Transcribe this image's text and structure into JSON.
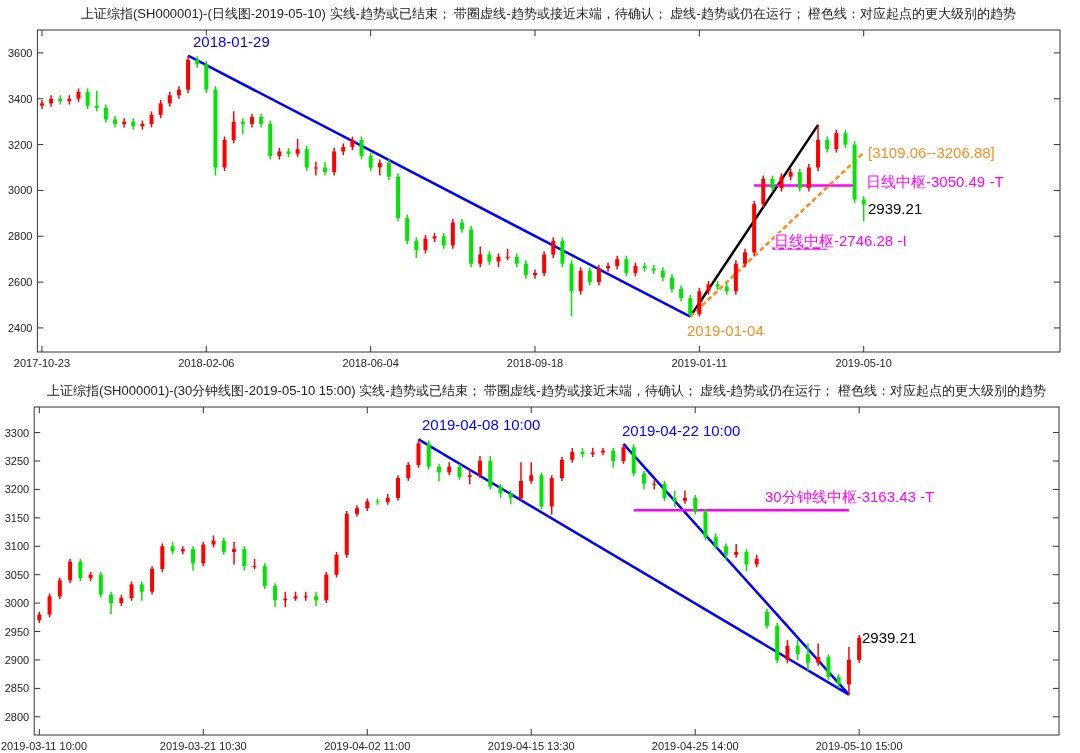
{
  "chart_data": [
    {
      "type": "candlestick",
      "title": "上证综指(SH000001)-(日线图-2019-05-10)  实线-趋势或已结束；  带圈虚线-趋势或接近末端，待确认；  虚线-趋势或仍在运行；  橙色线：对应起点的更大级别的趋势",
      "ylim": [
        2295,
        3700
      ],
      "yticks": [
        2400,
        2600,
        2800,
        3000,
        3200,
        3400,
        3600
      ],
      "categories": [
        "2017-10-23",
        null,
        null,
        null,
        null,
        null,
        null,
        null,
        null,
        null,
        null,
        null,
        null,
        null,
        null,
        null,
        null,
        null,
        "2018-02-06",
        null,
        null,
        null,
        null,
        null,
        null,
        null,
        null,
        null,
        null,
        null,
        null,
        null,
        null,
        null,
        null,
        null,
        "2018-06-04",
        null,
        null,
        null,
        null,
        null,
        null,
        null,
        null,
        null,
        null,
        null,
        null,
        null,
        null,
        null,
        null,
        null,
        "2018-09-18",
        null,
        null,
        null,
        null,
        null,
        null,
        null,
        null,
        null,
        null,
        null,
        null,
        null,
        null,
        null,
        null,
        null,
        "2019-01-11",
        null,
        null,
        null,
        null,
        null,
        null,
        null,
        null,
        null,
        null,
        null,
        null,
        null,
        null,
        null,
        null,
        null,
        "2019-05-10",
        null,
        null,
        null,
        null,
        null,
        null,
        null,
        null,
        null,
        null,
        null,
        null,
        null,
        null,
        null,
        null,
        null,
        null,
        null,
        null,
        null
      ],
      "ohlc": [
        [
          3370,
          3395,
          3355,
          3380
        ],
        [
          3380,
          3415,
          3365,
          3400
        ],
        [
          3400,
          3415,
          3375,
          3390
        ],
        [
          3390,
          3415,
          3375,
          3400
        ],
        [
          3400,
          3445,
          3385,
          3430
        ],
        [
          3430,
          3445,
          3355,
          3370
        ],
        [
          3370,
          3435,
          3345,
          3360
        ],
        [
          3360,
          3375,
          3295,
          3310
        ],
        [
          3310,
          3325,
          3275,
          3290
        ],
        [
          3290,
          3315,
          3275,
          3300
        ],
        [
          3300,
          3315,
          3265,
          3280
        ],
        [
          3280,
          3305,
          3265,
          3290
        ],
        [
          3290,
          3345,
          3275,
          3330
        ],
        [
          3330,
          3395,
          3315,
          3380
        ],
        [
          3380,
          3430,
          3365,
          3415
        ],
        [
          3415,
          3455,
          3400,
          3440
        ],
        [
          3440,
          3588,
          3425,
          3570
        ],
        [
          3570,
          3585,
          3535,
          3550
        ],
        [
          3550,
          3565,
          3425,
          3440
        ],
        [
          3440,
          3455,
          3065,
          3100
        ],
        [
          3100,
          3235,
          3085,
          3220
        ],
        [
          3220,
          3345,
          3205,
          3300
        ],
        [
          3300,
          3315,
          3245,
          3290
        ],
        [
          3290,
          3335,
          3275,
          3320
        ],
        [
          3320,
          3335,
          3275,
          3290
        ],
        [
          3290,
          3305,
          3135,
          3150
        ],
        [
          3150,
          3185,
          3135,
          3170
        ],
        [
          3170,
          3185,
          3145,
          3160
        ],
        [
          3160,
          3225,
          3145,
          3180
        ],
        [
          3180,
          3195,
          3085,
          3100
        ],
        [
          3100,
          3125,
          3065,
          3100
        ],
        [
          3100,
          3125,
          3065,
          3080
        ],
        [
          3080,
          3185,
          3065,
          3170
        ],
        [
          3170,
          3205,
          3155,
          3190
        ],
        [
          3190,
          3235,
          3175,
          3220
        ],
        [
          3220,
          3235,
          3135,
          3150
        ],
        [
          3150,
          3165,
          3085,
          3100
        ],
        [
          3100,
          3135,
          3065,
          3120
        ],
        [
          3120,
          3135,
          3045,
          3060
        ],
        [
          3060,
          3075,
          2865,
          2880
        ],
        [
          2880,
          2895,
          2765,
          2780
        ],
        [
          2780,
          2795,
          2705,
          2740
        ],
        [
          2740,
          2805,
          2725,
          2790
        ],
        [
          2790,
          2815,
          2775,
          2800
        ],
        [
          2800,
          2815,
          2745,
          2760
        ],
        [
          2760,
          2875,
          2745,
          2860
        ],
        [
          2860,
          2875,
          2815,
          2830
        ],
        [
          2830,
          2845,
          2665,
          2680
        ],
        [
          2680,
          2755,
          2665,
          2720
        ],
        [
          2720,
          2735,
          2675,
          2690
        ],
        [
          2690,
          2725,
          2665,
          2710
        ],
        [
          2710,
          2745,
          2695,
          2710
        ],
        [
          2710,
          2725,
          2665,
          2680
        ],
        [
          2680,
          2695,
          2615,
          2630
        ],
        [
          2630,
          2655,
          2615,
          2640
        ],
        [
          2640,
          2735,
          2625,
          2720
        ],
        [
          2720,
          2795,
          2705,
          2780
        ],
        [
          2780,
          2795,
          2665,
          2680
        ],
        [
          2680,
          2695,
          2450,
          2560
        ],
        [
          2560,
          2665,
          2545,
          2650
        ],
        [
          2650,
          2665,
          2585,
          2600
        ],
        [
          2600,
          2675,
          2585,
          2660
        ],
        [
          2660,
          2685,
          2645,
          2670
        ],
        [
          2670,
          2715,
          2655,
          2700
        ],
        [
          2700,
          2715,
          2625,
          2640
        ],
        [
          2640,
          2685,
          2625,
          2670
        ],
        [
          2670,
          2685,
          2645,
          2660
        ],
        [
          2660,
          2675,
          2635,
          2650
        ],
        [
          2650,
          2665,
          2605,
          2620
        ],
        [
          2620,
          2635,
          2555,
          2570
        ],
        [
          2570,
          2585,
          2515,
          2530
        ],
        [
          2530,
          2545,
          2449,
          2460
        ],
        [
          2460,
          2575,
          2450,
          2560
        ],
        [
          2560,
          2605,
          2545,
          2590
        ],
        [
          2590,
          2605,
          2565,
          2580
        ],
        [
          2580,
          2595,
          2545,
          2560
        ],
        [
          2560,
          2695,
          2545,
          2680
        ],
        [
          2680,
          2745,
          2665,
          2730
        ],
        [
          2730,
          2955,
          2715,
          2940
        ],
        [
          2940,
          3065,
          2925,
          3050
        ],
        [
          3050,
          3065,
          2995,
          3010
        ],
        [
          3010,
          3075,
          2995,
          3060
        ],
        [
          3060,
          3095,
          3045,
          3080
        ],
        [
          3080,
          3095,
          2995,
          3010
        ],
        [
          3010,
          3115,
          2995,
          3100
        ],
        [
          3100,
          3286,
          3085,
          3220
        ],
        [
          3220,
          3235,
          3165,
          3180
        ],
        [
          3180,
          3265,
          3165,
          3250
        ],
        [
          3250,
          3265,
          3185,
          3200
        ],
        [
          3200,
          3215,
          2945,
          2960
        ],
        [
          2960,
          2975,
          2865,
          2939.21
        ],
        null,
        null,
        null,
        null,
        null,
        null,
        null,
        null,
        null,
        null,
        null,
        null,
        null,
        null,
        null,
        null,
        null,
        null,
        null,
        null,
        null
      ],
      "colors": [
        "#ff0000",
        "#ff0000",
        "#00e600",
        "#ff0000",
        "#ff0000",
        "#00e600",
        "#00e600",
        "#00e600",
        "#00e600",
        "#ff0000",
        "#00e600",
        "#ff0000",
        "#ff0000",
        "#ff0000",
        "#ff0000",
        "#ff0000",
        "#ff0000",
        "#00e600",
        "#00e600",
        "#00e600",
        "#ff0000",
        "#ff0000",
        "#00e600",
        "#ff0000",
        "#00e600",
        "#00e600",
        "#ff0000",
        "#00e600",
        "#ff0000",
        "#00e600",
        "#ff0000",
        "#00e600",
        "#ff0000",
        "#ff0000",
        "#ff0000",
        "#00e600",
        "#00e600",
        "#ff0000",
        "#00e600",
        "#00e600",
        "#00e600",
        "#00e600",
        "#ff0000",
        "#ff0000",
        "#00e600",
        "#ff0000",
        "#00e600",
        "#00e600",
        "#ff0000",
        "#00e600",
        "#ff0000",
        "#ff0000",
        "#00e600",
        "#00e600",
        "#ff0000",
        "#ff0000",
        "#ff0000",
        "#00e600",
        "#00e600",
        "#ff0000",
        "#00e600",
        "#ff0000",
        "#ff0000",
        "#ff0000",
        "#00e600",
        "#ff0000",
        "#00e600",
        "#00e600",
        "#00e600",
        "#00e600",
        "#00e600",
        "#00e600",
        "#ff0000",
        "#ff0000",
        "#00e600",
        "#00e600",
        "#ff0000",
        "#ff0000",
        "#ff0000",
        "#ff0000",
        "#00e600",
        "#ff0000",
        "#ff0000",
        "#00e600",
        "#ff0000",
        "#ff0000",
        "#00e600",
        "#ff0000",
        "#00e600",
        "#00e600",
        "#00e600",
        null,
        null,
        null,
        null,
        null,
        null,
        null,
        null,
        null,
        null,
        null,
        null,
        null,
        null,
        null,
        null,
        null,
        null,
        null,
        null,
        null
      ],
      "series": [
        {
          "type": "line",
          "color": "#0000ff",
          "values": [
            null,
            null,
            null,
            null,
            null,
            null,
            null,
            null,
            null,
            null,
            null,
            null,
            null,
            null,
            null,
            null,
            3588,
            null,
            null,
            null,
            null,
            null,
            null,
            null,
            null,
            null,
            null,
            null,
            null,
            null,
            null,
            null,
            null,
            null,
            null,
            null,
            null,
            null,
            null,
            null,
            null,
            null,
            null,
            null,
            null,
            null,
            null,
            null,
            null,
            null,
            null,
            null,
            null,
            null,
            null,
            null,
            null,
            null,
            null,
            null,
            null,
            null,
            null,
            null,
            null,
            null,
            null,
            null,
            null,
            null,
            null,
            2449,
            null,
            null,
            null,
            null,
            null,
            null,
            null,
            null,
            null,
            null,
            null,
            null,
            null,
            null,
            null,
            null,
            null,
            null,
            null,
            null,
            null,
            null,
            null,
            null,
            null,
            null,
            null,
            null,
            null,
            null,
            null,
            null,
            null,
            null,
            null,
            null,
            null,
            null,
            null,
            null
          ]
        },
        {
          "type": "line",
          "color": "#ff8c1a",
          "line_style": "dashed",
          "values": [
            null,
            null,
            null,
            null,
            null,
            null,
            null,
            null,
            null,
            null,
            null,
            null,
            null,
            null,
            null,
            null,
            null,
            null,
            null,
            null,
            null,
            null,
            null,
            null,
            null,
            null,
            null,
            null,
            null,
            null,
            null,
            null,
            null,
            null,
            null,
            null,
            null,
            null,
            null,
            null,
            null,
            null,
            null,
            null,
            null,
            null,
            null,
            null,
            null,
            null,
            null,
            null,
            null,
            null,
            null,
            null,
            null,
            null,
            null,
            null,
            null,
            null,
            null,
            null,
            null,
            null,
            null,
            null,
            null,
            null,
            null,
            2449,
            null,
            null,
            null,
            null,
            null,
            null,
            null,
            null,
            null,
            null,
            null,
            null,
            null,
            null,
            null,
            null,
            null,
            null,
            3165,
            null,
            null,
            null,
            null,
            null,
            null,
            null,
            null,
            null,
            null,
            null,
            null,
            null,
            null,
            null,
            null,
            null,
            null,
            null,
            null,
            null
          ]
        },
        {
          "type": "line",
          "color": "#000000",
          "values": [
            null,
            null,
            null,
            null,
            null,
            null,
            null,
            null,
            null,
            null,
            null,
            null,
            null,
            null,
            null,
            null,
            null,
            null,
            null,
            null,
            null,
            null,
            null,
            null,
            null,
            null,
            null,
            null,
            null,
            null,
            null,
            null,
            null,
            null,
            null,
            null,
            null,
            null,
            null,
            null,
            null,
            null,
            null,
            null,
            null,
            null,
            null,
            null,
            null,
            null,
            null,
            null,
            null,
            null,
            null,
            null,
            null,
            null,
            null,
            null,
            null,
            null,
            null,
            null,
            null,
            null,
            null,
            null,
            null,
            null,
            null,
            2449,
            null,
            null,
            null,
            null,
            null,
            null,
            null,
            null,
            null,
            null,
            null,
            null,
            null,
            3286,
            null,
            null,
            null,
            null,
            null,
            null,
            null,
            null,
            null,
            null,
            null,
            null,
            null,
            null,
            null,
            null,
            null,
            null,
            null,
            null,
            null,
            null,
            null,
            null,
            null,
            null
          ]
        },
        {
          "type": "line",
          "color": "#ff00ff",
          "values": [
            null,
            null,
            null,
            null,
            null,
            null,
            null,
            null,
            null,
            null,
            null,
            null,
            null,
            null,
            null,
            null,
            null,
            null,
            null,
            null,
            null,
            null,
            null,
            null,
            null,
            null,
            null,
            null,
            null,
            null,
            null,
            null,
            null,
            null,
            null,
            null,
            null,
            null,
            null,
            null,
            null,
            null,
            null,
            null,
            null,
            null,
            null,
            null,
            null,
            null,
            null,
            null,
            null,
            null,
            null,
            null,
            null,
            null,
            null,
            null,
            null,
            null,
            null,
            null,
            null,
            null,
            null,
            null,
            null,
            null,
            null,
            null,
            null,
            null,
            null,
            null,
            null,
            null,
            3022,
            3022,
            3022,
            3022,
            3022,
            3022,
            3022,
            3022,
            3022,
            3022,
            3022,
            3022,
            null,
            null,
            null,
            null,
            null,
            null,
            null,
            null,
            null,
            null,
            null,
            null,
            null,
            null,
            null,
            null,
            null,
            null,
            null,
            null,
            null,
            null
          ]
        },
        {
          "type": "line",
          "color": "#ff00ff",
          "values": [
            null,
            null,
            null,
            null,
            null,
            null,
            null,
            null,
            null,
            null,
            null,
            null,
            null,
            null,
            null,
            null,
            null,
            null,
            null,
            null,
            null,
            null,
            null,
            null,
            null,
            null,
            null,
            null,
            null,
            null,
            null,
            null,
            null,
            null,
            null,
            null,
            null,
            null,
            null,
            null,
            null,
            null,
            null,
            null,
            null,
            null,
            null,
            null,
            null,
            null,
            null,
            null,
            null,
            null,
            null,
            null,
            null,
            null,
            null,
            null,
            null,
            null,
            null,
            null,
            null,
            null,
            null,
            null,
            null,
            null,
            null,
            null,
            null,
            null,
            null,
            null,
            null,
            null,
            null,
            null,
            2746.28,
            2746.28,
            2746.28,
            2746.28,
            2746.28,
            2746.28,
            2746.28,
            null,
            null,
            null,
            null,
            null,
            null,
            null,
            null,
            null,
            null,
            null,
            null,
            null,
            null,
            null,
            null,
            null,
            null,
            null,
            null,
            null,
            null,
            null,
            null,
            null
          ]
        }
      ],
      "annotations": [
        "2018-01-29",
        "2019-01-04",
        "[3109.06--3206.88]",
        "日线中枢-3050.49 -T",
        "日线中枢-2746.28 -I",
        "2939.21"
      ]
    },
    {
      "type": "candlestick",
      "title": "上证综指(SH000001)-(30分钟线图-2019-05-10 15:00)  实线-趋势或已结束；  带圈虚线-趋势或接近末端，待确认；  虚线-趋势或仍在运行；  橙色线：对应起点的更大级别的趋势",
      "ylim": [
        2768,
        3345
      ],
      "yticks": [
        2800,
        2850,
        2900,
        2950,
        3000,
        3050,
        3100,
        3150,
        3200,
        3250,
        3300
      ],
      "categories": [
        "2019-03-11 10:00",
        null,
        null,
        null,
        null,
        null,
        null,
        null,
        null,
        null,
        null,
        null,
        null,
        null,
        null,
        null,
        "2019-03-21 10:30",
        null,
        null,
        null,
        null,
        null,
        null,
        null,
        null,
        null,
        null,
        null,
        null,
        null,
        null,
        null,
        "2019-04-02 11:00",
        null,
        null,
        null,
        null,
        null,
        null,
        null,
        null,
        null,
        null,
        null,
        null,
        null,
        null,
        null,
        "2019-04-15 13:30",
        null,
        null,
        null,
        null,
        null,
        null,
        null,
        null,
        null,
        null,
        null,
        null,
        null,
        null,
        null,
        "2019-04-25 14:00",
        null,
        null,
        null,
        null,
        null,
        null,
        null,
        null,
        null,
        null,
        null,
        null,
        null,
        null,
        null,
        "2019-05-10 15:00",
        null,
        null,
        null,
        null,
        null,
        null,
        null,
        null,
        null,
        null,
        null,
        null,
        null,
        null,
        null,
        null,
        null,
        null,
        null
      ],
      "ohlc": [
        [
          2970,
          2985,
          2965,
          2980
        ],
        [
          2980,
          3017,
          2975,
          3012
        ],
        [
          3012,
          3045,
          3007,
          3040
        ],
        [
          3040,
          3078,
          3035,
          3073
        ],
        [
          3073,
          3078,
          3039,
          3044
        ],
        [
          3044,
          3055,
          3039,
          3050
        ],
        [
          3050,
          3055,
          3010,
          3015
        ],
        [
          3015,
          3020,
          2981,
          3000
        ],
        [
          3000,
          3014,
          2995,
          3009
        ],
        [
          3009,
          3038,
          3004,
          3033
        ],
        [
          3033,
          3038,
          3004,
          3020
        ],
        [
          3020,
          3065,
          3015,
          3060
        ],
        [
          3060,
          3105,
          3055,
          3100
        ],
        [
          3100,
          3108,
          3086,
          3091
        ],
        [
          3091,
          3100,
          3086,
          3095
        ],
        [
          3095,
          3100,
          3057,
          3070
        ],
        [
          3070,
          3108,
          3065,
          3103
        ],
        [
          3103,
          3119,
          3098,
          3110
        ],
        [
          3110,
          3115,
          3085,
          3090
        ],
        [
          3090,
          3108,
          3068,
          3095
        ],
        [
          3095,
          3100,
          3057,
          3065
        ],
        [
          3065,
          3078,
          3060,
          3065
        ],
        [
          3065,
          3070,
          3025,
          3030
        ],
        [
          3030,
          3035,
          2993,
          3005
        ],
        [
          3005,
          3020,
          2993,
          3008
        ],
        [
          3008,
          3020,
          3004,
          3012
        ],
        [
          3012,
          3020,
          3004,
          3012
        ],
        [
          3012,
          3020,
          2995,
          3005
        ],
        [
          3005,
          3055,
          3000,
          3050
        ],
        [
          3050,
          3090,
          3045,
          3085
        ],
        [
          3085,
          3162,
          3080,
          3157
        ],
        [
          3157,
          3172,
          3152,
          3167
        ],
        [
          3167,
          3184,
          3162,
          3179
        ],
        [
          3179,
          3184,
          3173,
          3178
        ],
        [
          3178,
          3192,
          3173,
          3185
        ],
        [
          3185,
          3225,
          3180,
          3220
        ],
        [
          3220,
          3248,
          3215,
          3243
        ],
        [
          3243,
          3288,
          3238,
          3281
        ],
        [
          3281,
          3286,
          3235,
          3240
        ],
        [
          3240,
          3245,
          3214,
          3230
        ],
        [
          3230,
          3248,
          3225,
          3240
        ],
        [
          3240,
          3245,
          3217,
          3222
        ],
        [
          3222,
          3236,
          3209,
          3225
        ],
        [
          3225,
          3259,
          3220,
          3250
        ],
        [
          3250,
          3259,
          3200,
          3205
        ],
        [
          3205,
          3210,
          3185,
          3193
        ],
        [
          3193,
          3198,
          3174,
          3185
        ],
        [
          3185,
          3248,
          3180,
          3215
        ],
        [
          3215,
          3248,
          3210,
          3225
        ],
        [
          3225,
          3230,
          3165,
          3170
        ],
        [
          3170,
          3225,
          3156,
          3220
        ],
        [
          3220,
          3257,
          3215,
          3252
        ],
        [
          3252,
          3273,
          3247,
          3266
        ],
        [
          3266,
          3273,
          3256,
          3262
        ],
        [
          3262,
          3273,
          3257,
          3265
        ],
        [
          3265,
          3273,
          3260,
          3268
        ],
        [
          3268,
          3273,
          3238,
          3250
        ],
        [
          3250,
          3280,
          3245,
          3274
        ],
        [
          3274,
          3279,
          3223,
          3228
        ],
        [
          3228,
          3233,
          3200,
          3210
        ],
        [
          3210,
          3216,
          3200,
          3210
        ],
        [
          3210,
          3215,
          3180,
          3185
        ],
        [
          3185,
          3198,
          3169,
          3180
        ],
        [
          3180,
          3198,
          3175,
          3185
        ],
        [
          3185,
          3190,
          3156,
          3161
        ],
        [
          3161,
          3166,
          3111,
          3116
        ],
        [
          3116,
          3123,
          3095,
          3100
        ],
        [
          3100,
          3105,
          3075,
          3085
        ],
        [
          3085,
          3104,
          3080,
          3090
        ],
        [
          3090,
          3095,
          3056,
          3068
        ],
        [
          3068,
          3085,
          3063,
          3078
        ],
        [
          2985,
          2990,
          2955,
          2960
        ],
        [
          2960,
          2965,
          2894,
          2900
        ],
        [
          2900,
          2935,
          2894,
          2925
        ],
        [
          2925,
          2935,
          2900,
          2910
        ],
        [
          2910,
          2929,
          2881,
          2895
        ],
        [
          2895,
          2929,
          2890,
          2905
        ],
        [
          2905,
          2910,
          2865,
          2870
        ],
        [
          2870,
          2875,
          2850,
          2857
        ],
        [
          2857,
          2923,
          2839,
          2900
        ],
        [
          2900,
          2944,
          2895,
          2939.21
        ],
        null,
        null,
        null,
        null,
        null,
        null,
        null,
        null,
        null,
        null,
        null,
        null,
        null,
        null,
        null,
        null,
        null,
        null,
        null
      ],
      "colors": [
        "#ff0000",
        "#ff0000",
        "#ff0000",
        "#ff0000",
        "#00e600",
        "#ff0000",
        "#00e600",
        "#00e600",
        "#ff0000",
        "#ff0000",
        "#00e600",
        "#ff0000",
        "#ff0000",
        "#00e600",
        "#ff0000",
        "#00e600",
        "#ff0000",
        "#ff0000",
        "#00e600",
        "#ff0000",
        "#00e600",
        "#ff0000",
        "#00e600",
        "#00e600",
        "#ff0000",
        "#ff0000",
        "#ff0000",
        "#00e600",
        "#ff0000",
        "#ff0000",
        "#ff0000",
        "#ff0000",
        "#ff0000",
        "#00e600",
        "#ff0000",
        "#ff0000",
        "#ff0000",
        "#ff0000",
        "#00e600",
        "#00e600",
        "#ff0000",
        "#00e600",
        "#ff0000",
        "#ff0000",
        "#00e600",
        "#00e600",
        "#00e600",
        "#ff0000",
        "#ff0000",
        "#00e600",
        "#ff0000",
        "#ff0000",
        "#ff0000",
        "#00e600",
        "#ff0000",
        "#ff0000",
        "#00e600",
        "#ff0000",
        "#00e600",
        "#00e600",
        "#ff0000",
        "#00e600",
        "#00e600",
        "#ff0000",
        "#00e600",
        "#00e600",
        "#00e600",
        "#00e600",
        "#ff0000",
        "#00e600",
        "#ff0000",
        "#00e600",
        "#00e600",
        "#ff0000",
        "#00e600",
        "#00e600",
        "#ff0000",
        "#00e600",
        "#00e600",
        "#ff0000",
        "#ff0000",
        null,
        null,
        null,
        null,
        null,
        null,
        null,
        null,
        null,
        null,
        null,
        null,
        null,
        null,
        null,
        null,
        null,
        null,
        null
      ],
      "series": [
        {
          "type": "line",
          "color": "#0000ff",
          "values": [
            null,
            null,
            null,
            null,
            null,
            null,
            null,
            null,
            null,
            null,
            null,
            null,
            null,
            null,
            null,
            null,
            null,
            null,
            null,
            null,
            null,
            null,
            null,
            null,
            null,
            null,
            null,
            null,
            null,
            null,
            null,
            null,
            null,
            null,
            null,
            null,
            null,
            3288,
            null,
            null,
            null,
            null,
            null,
            null,
            null,
            null,
            null,
            null,
            null,
            null,
            null,
            null,
            null,
            null,
            null,
            null,
            null,
            null,
            null,
            null,
            null,
            null,
            null,
            null,
            null,
            null,
            null,
            null,
            null,
            null,
            null,
            null,
            null,
            null,
            null,
            null,
            null,
            null,
            null,
            2839,
            null,
            null,
            null,
            null,
            null,
            null,
            null,
            null,
            null,
            null,
            null,
            null,
            null,
            null,
            null,
            null,
            null,
            null,
            null,
            null
          ]
        },
        {
          "type": "line",
          "color": "#0000ff",
          "values": [
            null,
            null,
            null,
            null,
            null,
            null,
            null,
            null,
            null,
            null,
            null,
            null,
            null,
            null,
            null,
            null,
            null,
            null,
            null,
            null,
            null,
            null,
            null,
            null,
            null,
            null,
            null,
            null,
            null,
            null,
            null,
            null,
            null,
            null,
            null,
            null,
            null,
            null,
            null,
            null,
            null,
            null,
            null,
            null,
            null,
            null,
            null,
            null,
            null,
            null,
            null,
            null,
            null,
            null,
            null,
            null,
            null,
            3280,
            null,
            null,
            null,
            null,
            null,
            null,
            null,
            null,
            null,
            null,
            null,
            null,
            null,
            null,
            null,
            null,
            null,
            null,
            null,
            null,
            null,
            2839,
            null,
            null,
            null,
            null,
            null,
            null,
            null,
            null,
            null,
            null,
            null,
            null,
            null,
            null,
            null,
            null,
            null,
            null,
            null,
            null
          ]
        },
        {
          "type": "line",
          "color": "#ff00ff",
          "values": [
            null,
            null,
            null,
            null,
            null,
            null,
            null,
            null,
            null,
            null,
            null,
            null,
            null,
            null,
            null,
            null,
            null,
            null,
            null,
            null,
            null,
            null,
            null,
            null,
            null,
            null,
            null,
            null,
            null,
            null,
            null,
            null,
            null,
            null,
            null,
            null,
            null,
            null,
            null,
            null,
            null,
            null,
            null,
            null,
            null,
            null,
            null,
            null,
            null,
            null,
            null,
            null,
            null,
            null,
            null,
            null,
            null,
            null,
            3163.43,
            3163.43,
            3163.43,
            3163.43,
            3163.43,
            3163.43,
            3163.43,
            3163.43,
            3163.43,
            3163.43,
            3163.43,
            3163.43,
            3163.43,
            3163.43,
            3163.43,
            3163.43,
            3163.43,
            3163.43,
            3163.43,
            3163.43,
            3163.43,
            3163.43,
            null,
            null,
            null,
            null,
            null,
            null,
            null,
            null,
            null,
            null,
            null,
            null,
            null,
            null,
            null,
            null,
            null,
            null,
            null,
            null
          ]
        }
      ],
      "annotations": [
        "2019-04-08 10:00",
        "2019-04-22 10:00",
        "30分钟线中枢-3163.43 -T",
        "2939.21"
      ]
    }
  ]
}
